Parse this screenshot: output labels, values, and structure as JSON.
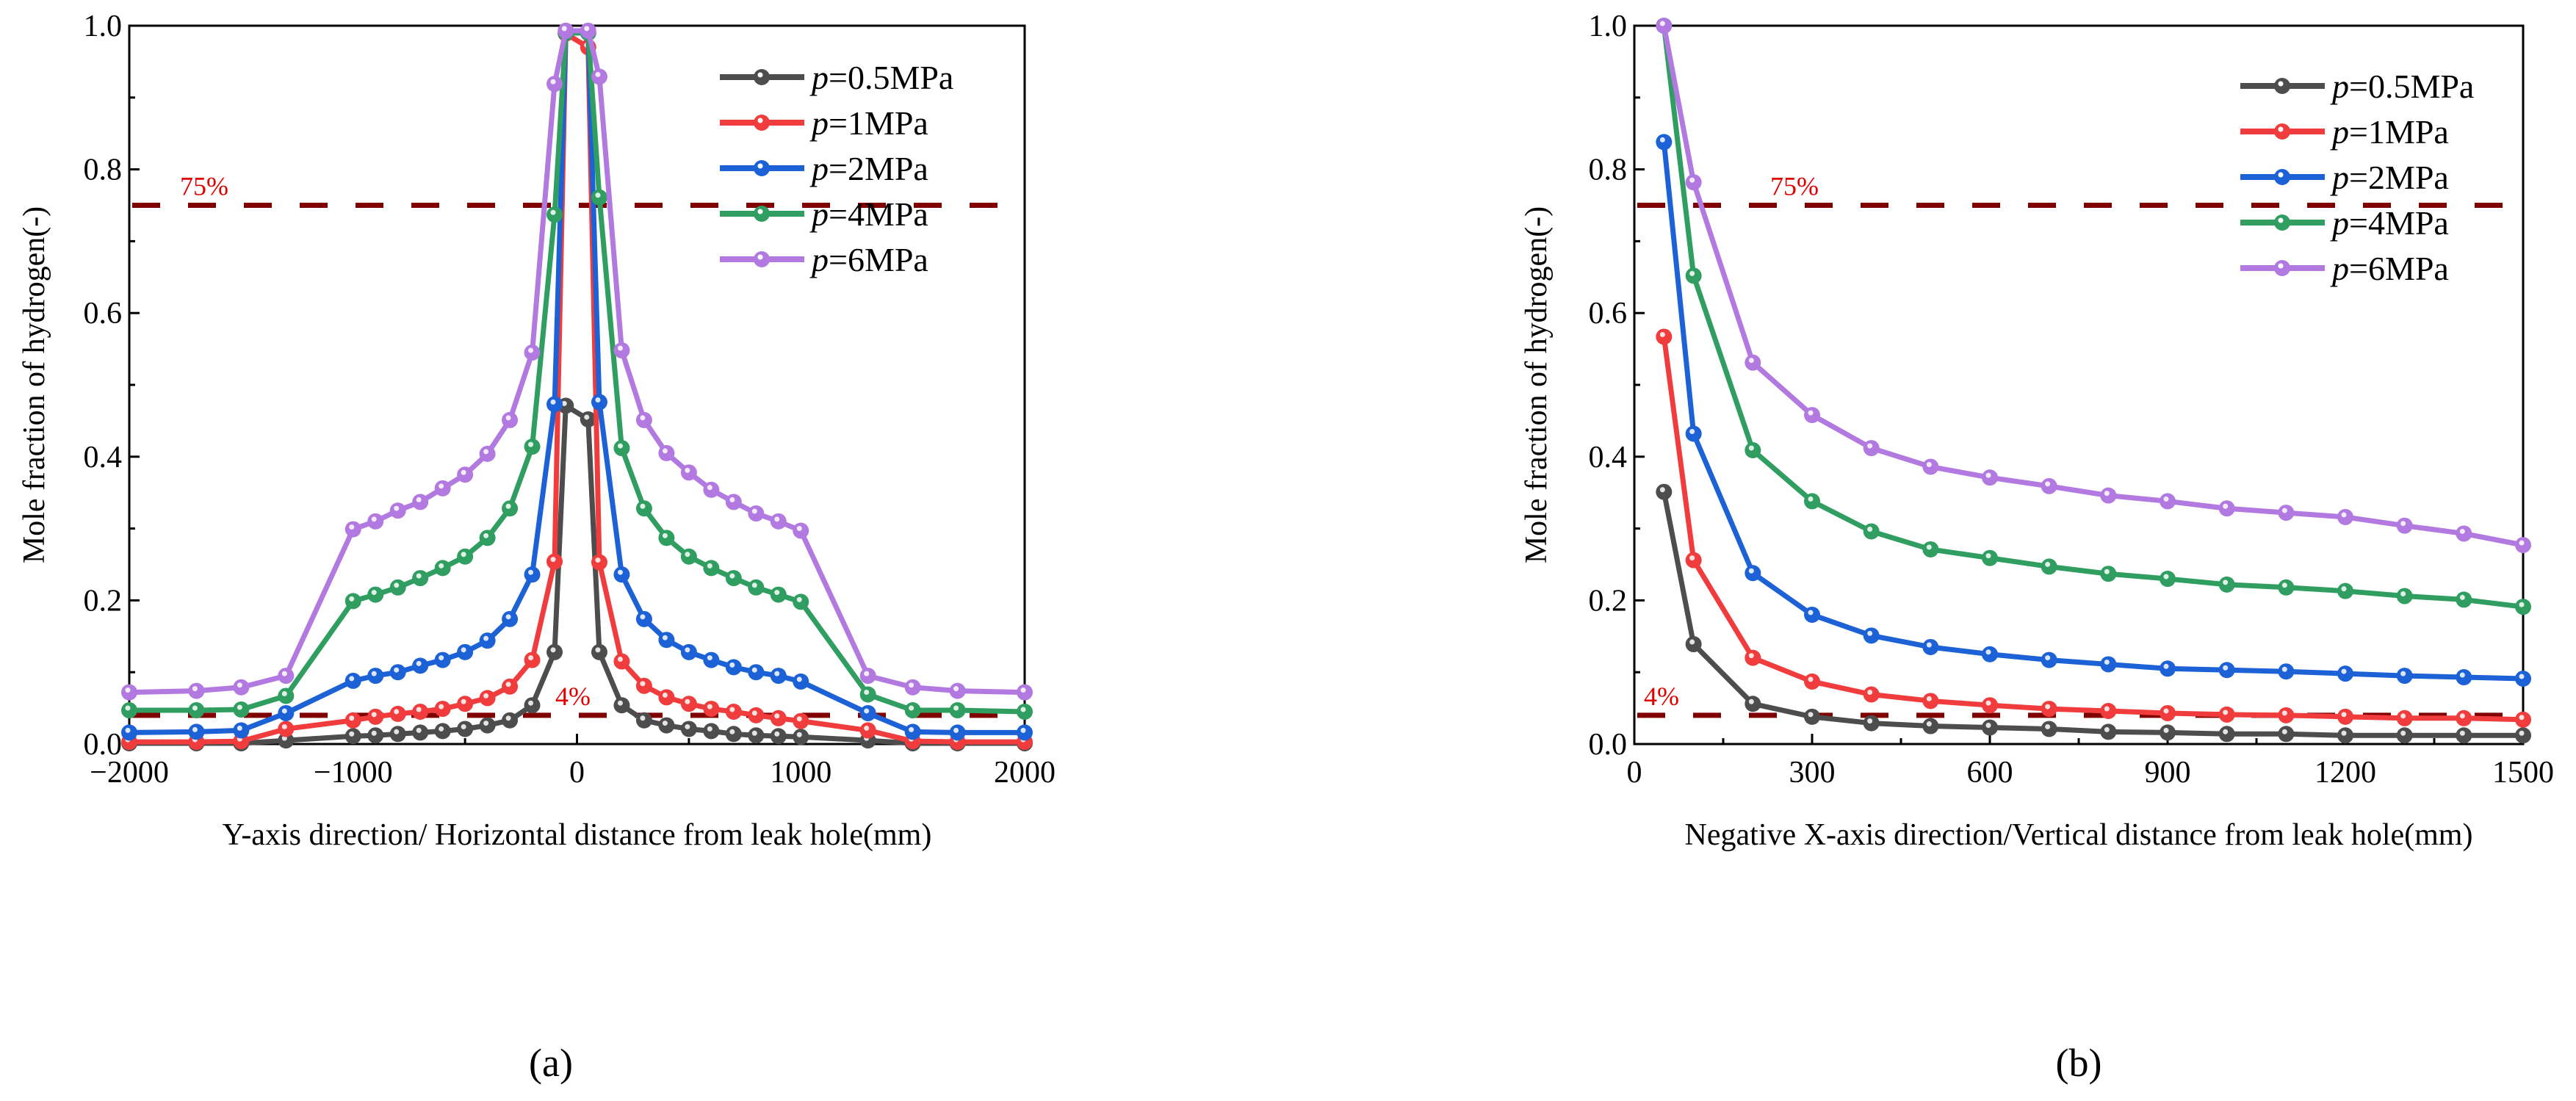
{
  "chart_data": [
    {
      "id": "a",
      "type": "line",
      "panel_label": "(a)",
      "panel_letter": "a",
      "xlabel": "Y-axis direction/ Horizontal distance from leak hole(mm)",
      "ylabel": "Mole fraction of hydrogen(-)",
      "xlim": [
        -2000,
        2000
      ],
      "ylim": [
        0,
        1
      ],
      "xticks": [
        -2000,
        -1000,
        0,
        1000,
        2000
      ],
      "xtick_labels": [
        "−2000",
        "−1000",
        "0",
        "1000",
        "2000"
      ],
      "yticks": [
        0,
        0.2,
        0.4,
        0.6,
        0.8,
        1.0
      ],
      "ytick_labels": [
        "0.0",
        "0.2",
        "0.4",
        "0.6",
        "0.8",
        "1.0"
      ],
      "legend_position": "top-right",
      "reference_lines": [
        {
          "y": 0.75,
          "label": "75%"
        },
        {
          "y": 0.04,
          "label": "4%"
        }
      ],
      "x": [
        -2000,
        -1700,
        -1500,
        -1300,
        -1000,
        -900,
        -800,
        -700,
        -600,
        -500,
        -400,
        -300,
        -200,
        -100,
        -50,
        50,
        100,
        200,
        300,
        400,
        500,
        600,
        700,
        800,
        900,
        1000,
        1300,
        1500,
        1700,
        2000
      ],
      "series": [
        {
          "name": "p=0.5MPa",
          "p_label": "p",
          "rest_label": "=0.5MPa",
          "color": "#4d4d4d",
          "values": [
            0.001,
            0.001,
            0.001,
            0.005,
            0.011,
            0.012,
            0.014,
            0.016,
            0.018,
            0.021,
            0.026,
            0.033,
            0.054,
            0.128,
            0.471,
            0.452,
            0.128,
            0.054,
            0.033,
            0.026,
            0.021,
            0.018,
            0.014,
            0.012,
            0.011,
            0.01,
            0.005,
            0.001,
            0.001,
            0.001
          ]
        },
        {
          "name": "p=1MPa",
          "p_label": "p",
          "rest_label": "=1MPa",
          "color": "#f03c3c",
          "values": [
            0.003,
            0.003,
            0.004,
            0.021,
            0.033,
            0.038,
            0.042,
            0.045,
            0.049,
            0.056,
            0.064,
            0.08,
            0.117,
            0.254,
            0.989,
            0.97,
            0.253,
            0.115,
            0.081,
            0.065,
            0.056,
            0.049,
            0.045,
            0.04,
            0.036,
            0.032,
            0.019,
            0.004,
            0.003,
            0.003
          ]
        },
        {
          "name": "p=2MPa",
          "p_label": "p",
          "rest_label": "=2MPa",
          "color": "#1c62d6",
          "values": [
            0.016,
            0.017,
            0.019,
            0.043,
            0.088,
            0.095,
            0.1,
            0.109,
            0.117,
            0.128,
            0.144,
            0.174,
            0.236,
            0.473,
            0.99,
            0.99,
            0.476,
            0.236,
            0.174,
            0.145,
            0.128,
            0.117,
            0.107,
            0.1,
            0.095,
            0.087,
            0.043,
            0.017,
            0.016,
            0.016
          ]
        },
        {
          "name": "p=4MPa",
          "p_label": "p",
          "rest_label": "=4MPa",
          "color": "#2f9e60",
          "values": [
            0.047,
            0.047,
            0.048,
            0.067,
            0.199,
            0.208,
            0.218,
            0.231,
            0.245,
            0.261,
            0.287,
            0.328,
            0.414,
            0.737,
            0.99,
            0.99,
            0.761,
            0.412,
            0.328,
            0.287,
            0.261,
            0.245,
            0.231,
            0.218,
            0.208,
            0.198,
            0.069,
            0.047,
            0.047,
            0.045
          ]
        },
        {
          "name": "p=6MPa",
          "p_label": "p",
          "rest_label": "=6MPa",
          "color": "#b27ae0",
          "values": [
            0.072,
            0.074,
            0.079,
            0.095,
            0.299,
            0.31,
            0.325,
            0.337,
            0.356,
            0.375,
            0.404,
            0.451,
            0.545,
            0.919,
            0.993,
            0.993,
            0.929,
            0.548,
            0.451,
            0.405,
            0.378,
            0.354,
            0.337,
            0.321,
            0.31,
            0.297,
            0.095,
            0.079,
            0.074,
            0.072
          ]
        }
      ]
    },
    {
      "id": "b",
      "type": "line",
      "panel_label": "(b)",
      "panel_letter": "b",
      "xlabel": "Negative X-axis direction/Vertical distance from leak hole(mm)",
      "ylabel": "Mole fraction of hydrogen(-)",
      "xlim": [
        0,
        1500
      ],
      "ylim": [
        0,
        1
      ],
      "xticks": [
        0,
        300,
        600,
        900,
        1200,
        1500
      ],
      "xtick_labels": [
        "0",
        "300",
        "600",
        "900",
        "1200",
        "1500"
      ],
      "yticks": [
        0,
        0.2,
        0.4,
        0.6,
        0.8,
        1.0
      ],
      "ytick_labels": [
        "0.0",
        "0.2",
        "0.4",
        "0.6",
        "0.8",
        "1.0"
      ],
      "legend_position": "top-right",
      "reference_lines": [
        {
          "y": 0.75,
          "label": "75%"
        },
        {
          "y": 0.04,
          "label": "4%"
        }
      ],
      "x": [
        50,
        100,
        200,
        300,
        400,
        500,
        600,
        700,
        800,
        900,
        1000,
        1100,
        1200,
        1300,
        1400,
        1500
      ],
      "series": [
        {
          "name": "p=0.5MPa",
          "p_label": "p",
          "rest_label": "=0.5MPa",
          "color": "#4d4d4d",
          "values": [
            0.351,
            0.139,
            0.056,
            0.038,
            0.029,
            0.025,
            0.023,
            0.021,
            0.017,
            0.016,
            0.014,
            0.014,
            0.012,
            0.012,
            0.012,
            0.012
          ]
        },
        {
          "name": "p=1MPa",
          "p_label": "p",
          "rest_label": "=1MPa",
          "color": "#f03c3c",
          "values": [
            0.567,
            0.256,
            0.12,
            0.087,
            0.069,
            0.06,
            0.054,
            0.049,
            0.046,
            0.043,
            0.041,
            0.04,
            0.038,
            0.036,
            0.036,
            0.034
          ]
        },
        {
          "name": "p=2MPa",
          "p_label": "p",
          "rest_label": "=2MPa",
          "color": "#1c62d6",
          "values": [
            0.838,
            0.432,
            0.238,
            0.18,
            0.151,
            0.135,
            0.125,
            0.117,
            0.111,
            0.105,
            0.103,
            0.101,
            0.098,
            0.095,
            0.093,
            0.091
          ]
        },
        {
          "name": "p=4MPa",
          "p_label": "p",
          "rest_label": "=4MPa",
          "color": "#2f9e60",
          "values": [
            1.0,
            0.652,
            0.409,
            0.338,
            0.296,
            0.271,
            0.259,
            0.247,
            0.237,
            0.23,
            0.222,
            0.218,
            0.213,
            0.206,
            0.201,
            0.191
          ]
        },
        {
          "name": "p=6MPa",
          "p_label": "p",
          "rest_label": "=6MPa",
          "color": "#b27ae0",
          "values": [
            1.0,
            0.782,
            0.531,
            0.458,
            0.412,
            0.386,
            0.371,
            0.359,
            0.346,
            0.338,
            0.328,
            0.322,
            0.316,
            0.304,
            0.293,
            0.277
          ]
        }
      ]
    }
  ],
  "colors": {
    "reference_line": "#800000",
    "reference_label": "#e00000"
  }
}
